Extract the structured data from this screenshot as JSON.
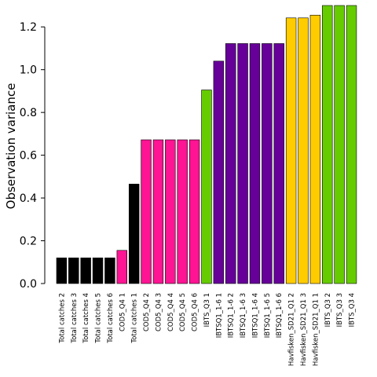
{
  "chart_data": {
    "type": "bar",
    "title": "",
    "xlabel": "",
    "ylabel": "Observation variance",
    "ylim": [
      0,
      1.3
    ],
    "yticks": [
      "0.0",
      "0.2",
      "0.4",
      "0.6",
      "0.8",
      "1.0",
      "1.2"
    ],
    "grid": false,
    "legend": "none",
    "categories": [
      "Total catches 2",
      "Total catches 3",
      "Total catches 4",
      "Total catches 5",
      "Total catches 6",
      "COD5_Q4 1",
      "Total catches 1",
      "COD5_Q4 2",
      "COD5_Q4 3",
      "COD5_Q4 4",
      "COD5_Q4 5",
      "COD5_Q4 6",
      "IBTS_Q3 1",
      "IBTSQ1_1-6 1",
      "IBTSQ1_1-6 2",
      "IBTSQ1_1-6 3",
      "IBTSQ1_1-6 4",
      "IBTSQ1_1-6 5",
      "IBTSQ1_1-6 6",
      "Havfisken_SD21_Q1 2",
      "Havfisken_SD21_Q1 3",
      "Havfisken_SD21_Q1 1",
      "IBTS_Q3 2",
      "IBTS_Q3 3",
      "IBTS_Q3 4"
    ],
    "values": [
      0.12,
      0.12,
      0.12,
      0.12,
      0.12,
      0.155,
      0.465,
      0.672,
      0.672,
      0.672,
      0.672,
      0.672,
      0.905,
      1.04,
      1.122,
      1.122,
      1.122,
      1.122,
      1.122,
      1.242,
      1.242,
      1.255,
      1.3,
      1.3,
      1.3
    ],
    "colors": [
      "#000000",
      "#000000",
      "#000000",
      "#000000",
      "#000000",
      "#ff1493",
      "#000000",
      "#ff1493",
      "#ff1493",
      "#ff1493",
      "#ff1493",
      "#ff1493",
      "#66cc00",
      "#660099",
      "#660099",
      "#660099",
      "#660099",
      "#660099",
      "#660099",
      "#ffcc00",
      "#ffcc00",
      "#ffcc00",
      "#66cc00",
      "#66cc00",
      "#66cc00"
    ]
  }
}
